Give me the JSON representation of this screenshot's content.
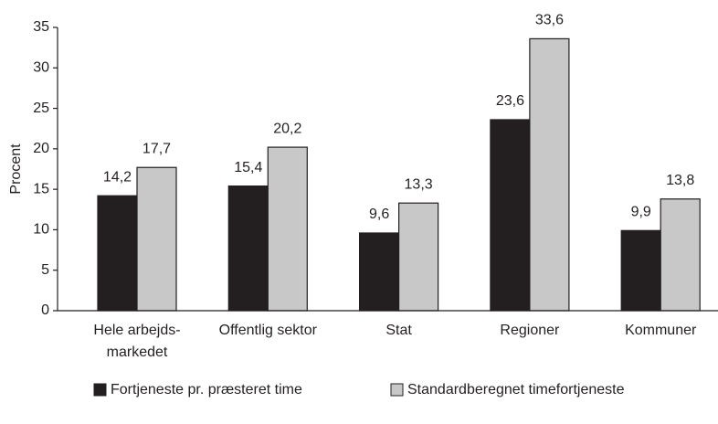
{
  "chart_data": {
    "type": "bar",
    "y_label": "Procent",
    "categories": [
      "Hele arbejds-\nmarkedet",
      "Offentlig sektor",
      "Stat",
      "Regioner",
      "Kommuner"
    ],
    "series": [
      {
        "name": "Fortjeneste pr. præsteret time",
        "color": "#231f20",
        "values": [
          14.2,
          15.4,
          9.6,
          23.6,
          9.9
        ],
        "value_labels": [
          "14,2",
          "15,4",
          "9,6",
          "23,6",
          "9,9"
        ]
      },
      {
        "name": "Standardberegnet timefortjeneste",
        "color": "#c8c8c8",
        "values": [
          17.7,
          20.2,
          13.3,
          33.6,
          13.8
        ],
        "value_labels": [
          "17,7",
          "20,2",
          "13,3",
          "33,6",
          "13,8"
        ]
      }
    ],
    "ylim": [
      0,
      35
    ],
    "yticks": [
      0,
      5,
      10,
      15,
      20,
      25,
      30,
      35
    ],
    "grid": false,
    "legend": "bottom"
  }
}
